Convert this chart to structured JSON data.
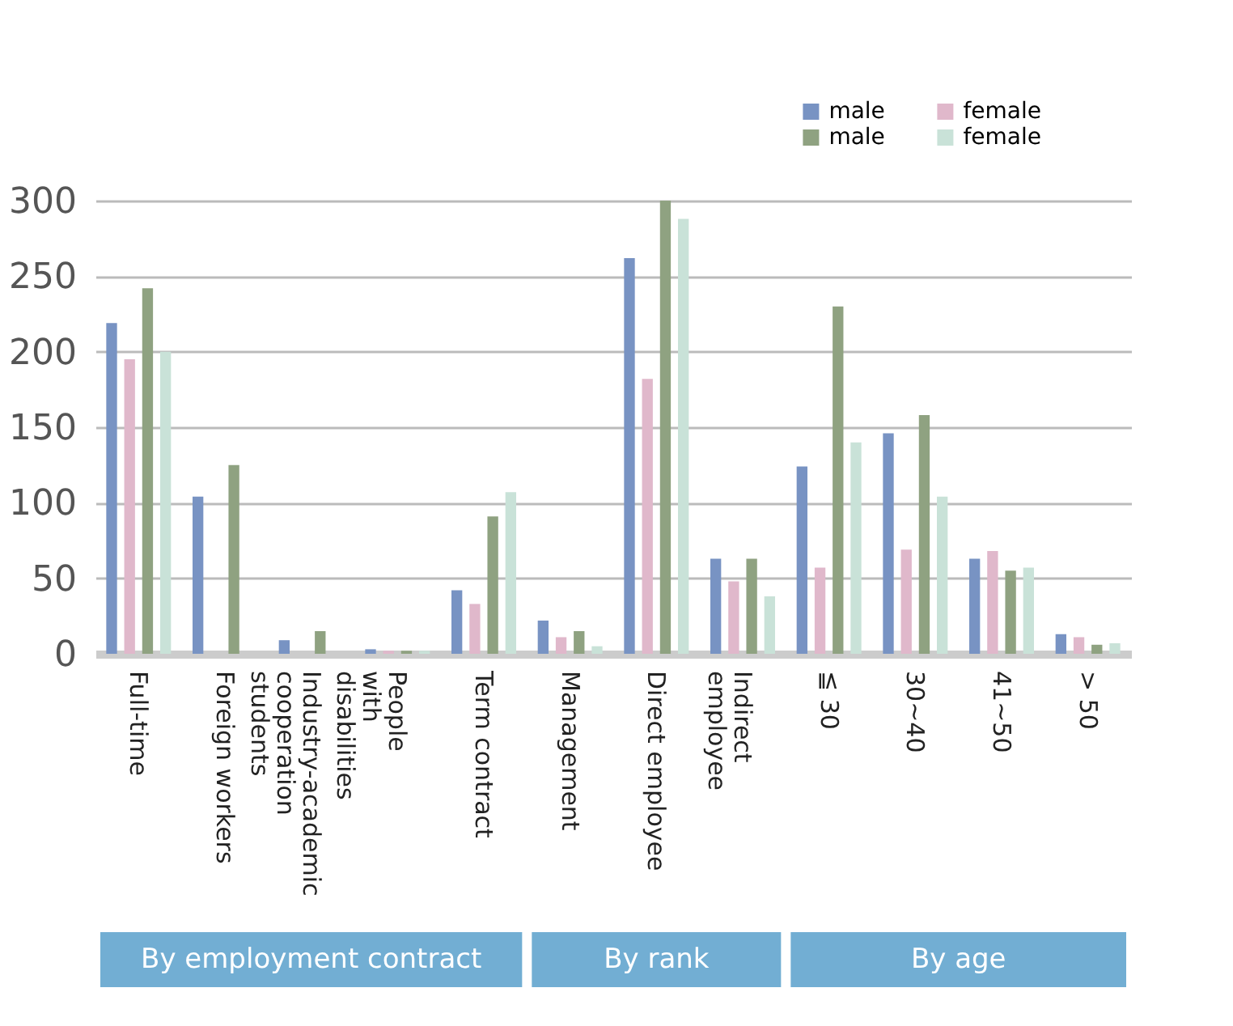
{
  "chart_data": {
    "type": "bar",
    "categories": [
      "Full-time",
      "Foreign workers",
      "Industry-academic cooperation students",
      "People with disabilities",
      "Term contract",
      "Management",
      "Direct employee",
      "Indirect employee",
      "≦ 30",
      "30~40",
      "41~50",
      "> 50"
    ],
    "series": [
      {
        "name": "male",
        "color": "#7893c3",
        "values": [
          219,
          104,
          9,
          3,
          42,
          22,
          262,
          63,
          124,
          146,
          63,
          13
        ]
      },
      {
        "name": "female",
        "color": "#e0b8cb",
        "values": [
          195,
          null,
          null,
          2,
          33,
          11,
          182,
          48,
          57,
          69,
          68,
          11
        ]
      },
      {
        "name": "male",
        "color": "#8fa281",
        "values": [
          242,
          125,
          15,
          2,
          91,
          15,
          300,
          63,
          230,
          158,
          55,
          6
        ]
      },
      {
        "name": "female",
        "color": "#c9e2d8",
        "values": [
          200,
          null,
          null,
          2,
          107,
          5,
          288,
          38,
          140,
          104,
          57,
          7
        ]
      }
    ],
    "ylim": [
      0,
      300
    ],
    "yticks": [
      0,
      50,
      100,
      150,
      200,
      250,
      300
    ],
    "grid": "y",
    "legend": "top right",
    "annotations": [
      "By employment contract",
      "By rank",
      "By age"
    ]
  }
}
